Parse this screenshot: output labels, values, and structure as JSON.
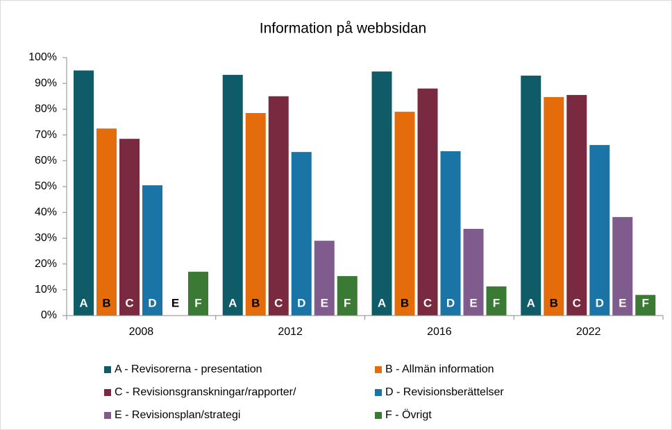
{
  "chart_data": {
    "type": "bar",
    "title": "Information på webbsidan",
    "categories": [
      "2008",
      "2012",
      "2016",
      "2022"
    ],
    "series": [
      {
        "name": "A - Revisorerna - presentation",
        "label": "A",
        "label_color": "#ffffff",
        "color": "#0f5b68",
        "values": [
          95,
          93.3,
          94.6,
          93
        ]
      },
      {
        "name": "B - Allmän information",
        "label": "B",
        "label_color": "#000000",
        "color": "#e46c0a",
        "values": [
          72.5,
          78.5,
          79,
          84.7
        ]
      },
      {
        "name": "C - Revisionsgranskningar/rapporter/",
        "label": "C",
        "label_color": "#ffffff",
        "color": "#7a2a40",
        "values": [
          68.5,
          85,
          88,
          85.5
        ]
      },
      {
        "name": "D - Revisionsberättelser",
        "label": "D",
        "label_color": "#ffffff",
        "color": "#1a75a6",
        "values": [
          50.5,
          63.4,
          63.7,
          66.1
        ]
      },
      {
        "name": "E - Revisionsplan/strategi",
        "label": "E",
        "label_color": "#ffffff",
        "color": "#7f5b8e",
        "values": [
          null,
          29,
          33.6,
          38.2
        ]
      },
      {
        "name": "F - Övrigt",
        "label": "F",
        "label_color": "#ffffff",
        "color": "#3b7a35",
        "values": [
          17,
          15.3,
          11.3,
          8
        ]
      }
    ],
    "ylim": [
      0,
      100
    ],
    "yticks": [
      {
        "value": 0,
        "label": "0%"
      },
      {
        "value": 10,
        "label": "10%"
      },
      {
        "value": 20,
        "label": "20%"
      },
      {
        "value": 30,
        "label": "30%"
      },
      {
        "value": 40,
        "label": "40%"
      },
      {
        "value": 50,
        "label": "50%"
      },
      {
        "value": 60,
        "label": "60%"
      },
      {
        "value": 70,
        "label": "70%"
      },
      {
        "value": 80,
        "label": "80%"
      },
      {
        "value": 90,
        "label": "90%"
      },
      {
        "value": 100,
        "label": "100%"
      }
    ],
    "grid": false
  }
}
